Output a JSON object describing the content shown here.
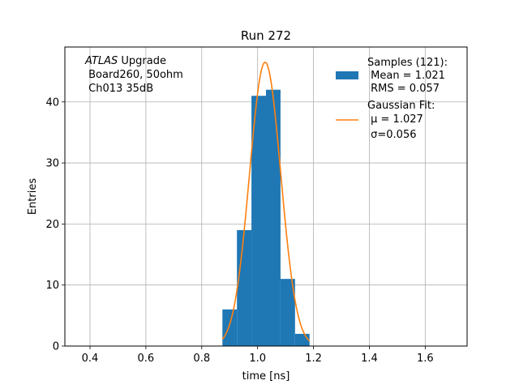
{
  "chart_data": {
    "type": "histogram",
    "title": "Run 272",
    "xlabel": "time [ns]",
    "ylabel": "Entries",
    "xlim": [
      0.31,
      1.75
    ],
    "ylim": [
      0,
      49
    ],
    "xticks": [
      0.4,
      0.6,
      0.8,
      1.0,
      1.2,
      1.4,
      1.6
    ],
    "xtick_labels": [
      "0.4",
      "0.6",
      "0.8",
      "1.0",
      "1.2",
      "1.4",
      "1.6"
    ],
    "yticks": [
      0,
      10,
      20,
      30,
      40
    ],
    "ytick_labels": [
      "0",
      "10",
      "20",
      "30",
      "40"
    ],
    "grid": true,
    "bins": [
      {
        "x0": 0.874,
        "x1": 0.926,
        "count": 6
      },
      {
        "x0": 0.926,
        "x1": 0.978,
        "count": 19
      },
      {
        "x0": 0.978,
        "x1": 1.03,
        "count": 41
      },
      {
        "x0": 1.03,
        "x1": 1.082,
        "count": 42
      },
      {
        "x0": 1.082,
        "x1": 1.134,
        "count": 11
      },
      {
        "x0": 1.134,
        "x1": 1.186,
        "count": 2
      }
    ],
    "fit": {
      "amplitude": 46.5,
      "mu": 1.027,
      "sigma": 0.056,
      "x_range": [
        0.874,
        1.186
      ]
    },
    "annotation": {
      "italic": "ATLAS",
      "line1_rest": " Upgrade",
      "line2": " Board260, 50ohm",
      "line3": " Ch013 35dB"
    },
    "legend": {
      "position": "upper-right",
      "samples": {
        "line1": "Samples (121):",
        "line2": " Mean = 1.021",
        "line3": " RMS = 0.057"
      },
      "fit": {
        "line1": "Gaussian Fit:",
        "line2": " μ = 1.027",
        "line3": " σ=0.056"
      }
    },
    "colors": {
      "bars": "#1f77b4",
      "fit": "#ff7f0e",
      "grid": "#b0b0b0",
      "axes": "#000000"
    }
  }
}
